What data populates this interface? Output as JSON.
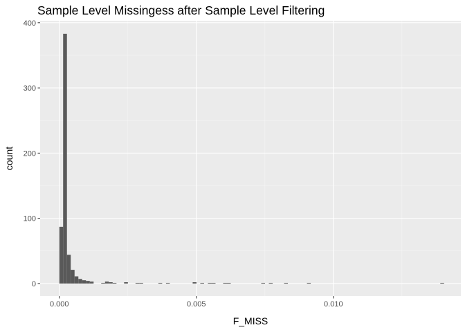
{
  "chart_data": {
    "type": "bar",
    "title": "Sample Level Missingess after Sample Level Filtering",
    "xlabel": "F_MISS",
    "ylabel": "count",
    "xlim": [
      -0.0007,
      0.01465
    ],
    "ylim": [
      -19.2,
      403
    ],
    "x_ticks": [
      0.0,
      0.005,
      0.01
    ],
    "x_tick_labels": [
      "0.000",
      "0.005",
      "0.010"
    ],
    "x_minor_ticks": [
      0.0025,
      0.0075,
      0.0125
    ],
    "y_ticks": [
      0,
      100,
      200,
      300,
      400
    ],
    "y_tick_labels": [
      "0",
      "100",
      "200",
      "300",
      "400"
    ],
    "y_minor_ticks": [
      50,
      150,
      250,
      350
    ],
    "bin_width": 0.000139,
    "bin_starts": [
      0.0,
      0.000139,
      0.000278,
      0.000417,
      0.000556,
      0.000695,
      0.000834,
      0.000973,
      0.001112,
      0.001529,
      0.001668,
      0.001807,
      0.001946,
      0.002363,
      0.00278,
      0.002919,
      0.003614,
      0.003892,
      0.004865,
      0.005143,
      0.005421,
      0.00556,
      0.005977,
      0.006116,
      0.007367,
      0.007645,
      0.008201,
      0.009035,
      0.0139
    ],
    "counts": [
      87,
      383,
      44,
      21,
      11,
      7,
      5,
      4,
      3,
      1,
      3,
      2,
      1,
      2,
      1,
      1,
      1,
      1,
      2,
      1,
      1,
      1,
      1,
      1,
      1,
      1,
      1,
      1,
      1
    ],
    "grid": true,
    "colors": {
      "panel_background": "#ebebeb",
      "grid_major": "#ffffff",
      "grid_minor": "#f5f5f5",
      "bar_fill": "#595959",
      "tick_text": "#4d4d4d",
      "tick_mark": "#333333"
    }
  }
}
